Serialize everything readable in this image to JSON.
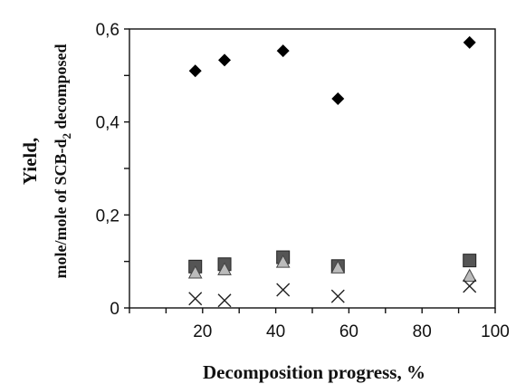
{
  "chart_data": {
    "type": "scatter",
    "title": "",
    "xlabel": "Decomposition progress, %",
    "ylabel_line1": "Yield,",
    "ylabel_line2_prefix": "mole/mole of SCB-d",
    "ylabel_line2_subscript": "2",
    "ylabel_line2_suffix": " decomposed",
    "xlim": [
      0,
      100
    ],
    "ylim": [
      0,
      0.6
    ],
    "xticks": [
      20,
      40,
      60,
      80,
      100
    ],
    "yticks": [
      0,
      0.2,
      0.4,
      0.6
    ],
    "xtick_labels": [
      "20",
      "40",
      "60",
      "80",
      "100"
    ],
    "ytick_labels": [
      "0",
      "0,2",
      "0,4",
      "0,6"
    ],
    "grid": false,
    "series": [
      {
        "marker": "diamond",
        "color": "#000000",
        "x": [
          18,
          26,
          42,
          57,
          93
        ],
        "y": [
          0.51,
          0.533,
          0.553,
          0.45,
          0.571
        ]
      },
      {
        "marker": "square",
        "color": "#555555",
        "x": [
          18,
          26,
          42,
          57,
          93
        ],
        "y": [
          0.089,
          0.094,
          0.109,
          0.09,
          0.102
        ]
      },
      {
        "marker": "triangle",
        "color": "#bbbbbb",
        "x": [
          18,
          26,
          42,
          57,
          93
        ],
        "y": [
          0.076,
          0.083,
          0.099,
          0.087,
          0.069
        ]
      },
      {
        "marker": "x",
        "color": "#222222",
        "x": [
          18,
          26,
          42,
          57,
          93
        ],
        "y": [
          0.02,
          0.016,
          0.039,
          0.025,
          0.047
        ]
      }
    ]
  }
}
